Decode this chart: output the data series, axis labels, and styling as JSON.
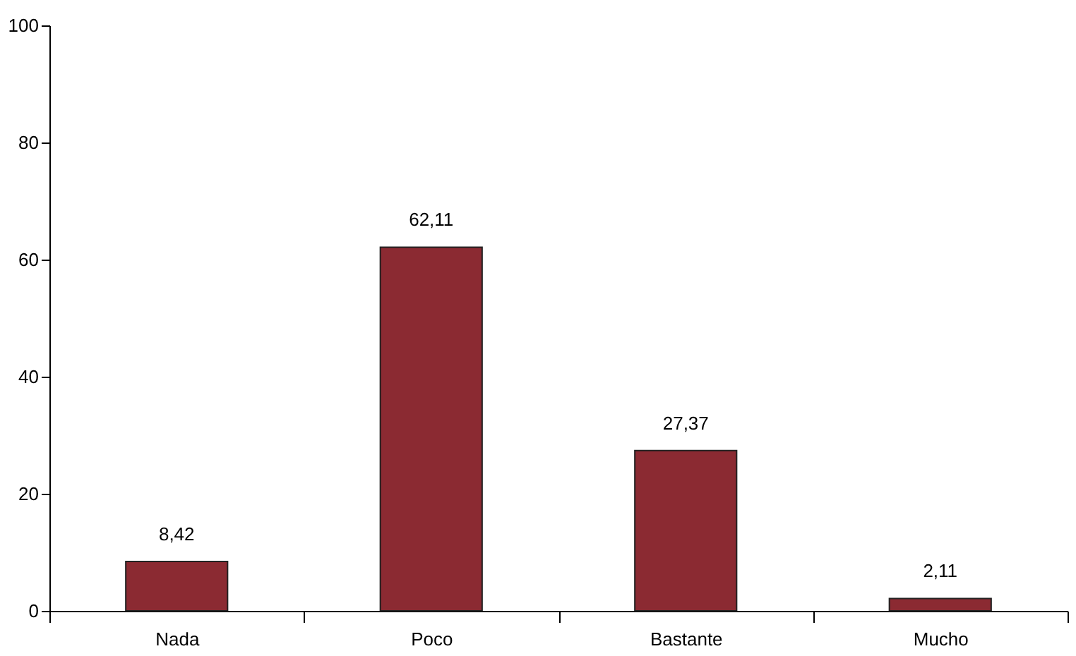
{
  "chart_data": {
    "type": "bar",
    "categories": [
      "Nada",
      "Poco",
      "Bastante",
      "Mucho"
    ],
    "values": [
      8.42,
      62.11,
      27.37,
      2.11
    ],
    "value_labels": [
      "8,42",
      "62,11",
      "27,37",
      "2,11"
    ],
    "color": "#8b2a32",
    "ylim": [
      0,
      100
    ],
    "yticks": [
      0,
      20,
      40,
      60,
      80,
      100
    ],
    "grid": false
  }
}
